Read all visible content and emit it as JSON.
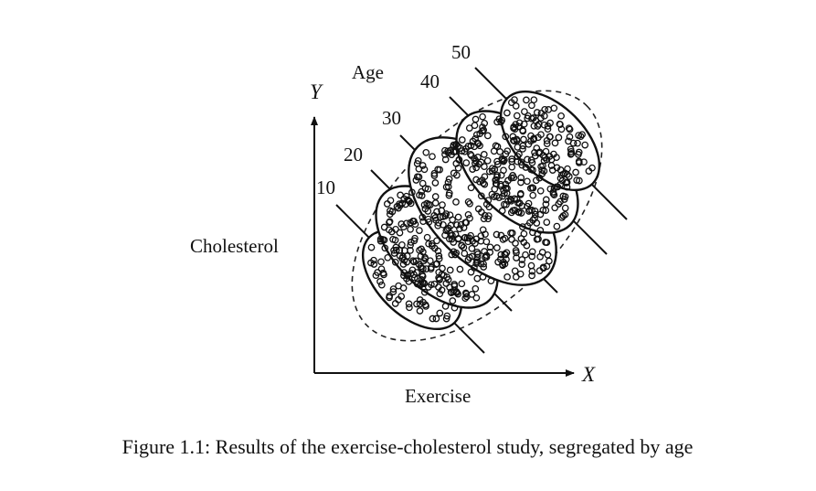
{
  "diagram": {
    "y_axis_letter": "Y",
    "x_axis_letter": "X",
    "y_axis_label": "Cholesterol",
    "x_axis_label": "Exercise",
    "age_heading": "Age",
    "age_groups": [
      {
        "label": "10"
      },
      {
        "label": "20"
      },
      {
        "label": "30"
      },
      {
        "label": "40"
      },
      {
        "label": "50"
      }
    ]
  },
  "caption": "Figure 1.1: Results of the exercise-cholesterol study, segregated by age"
}
